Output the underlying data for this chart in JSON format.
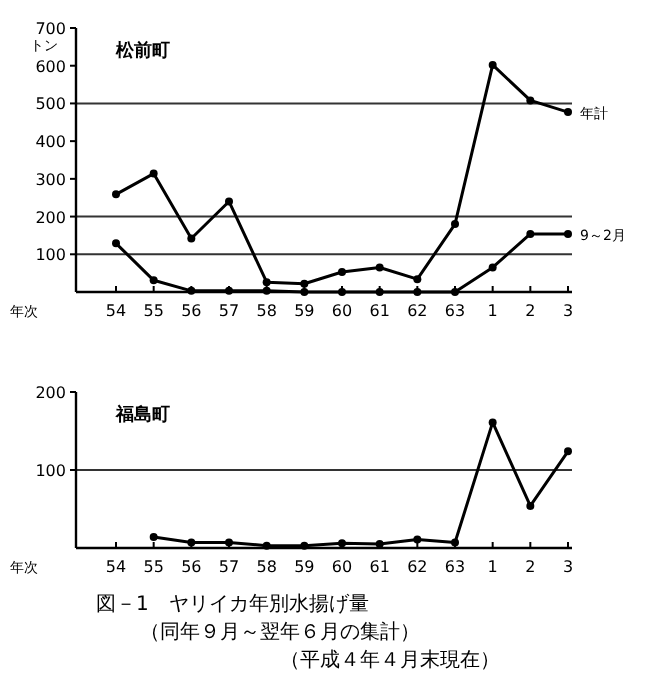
{
  "chart_data": [
    {
      "type": "line",
      "title": "松前町",
      "xlabel": "年次",
      "ylabel": "トン",
      "categories": [
        "54",
        "55",
        "56",
        "57",
        "58",
        "59",
        "60",
        "61",
        "62",
        "63",
        "1",
        "2",
        "3"
      ],
      "ylim": [
        0,
        700
      ],
      "yticks": [
        100,
        200,
        300,
        400,
        500,
        600,
        700
      ],
      "marker": "circle",
      "ref_lines": [
        {
          "axis": "y",
          "value": 100
        },
        {
          "axis": "y",
          "value": 200
        },
        {
          "axis": "y",
          "value": 500
        }
      ],
      "series": [
        {
          "name": "年計",
          "color": "#000000",
          "values": [
            259,
            314,
            142,
            240,
            26,
            22,
            53,
            65,
            34,
            180,
            602,
            508,
            477
          ]
        },
        {
          "name": "9～2月",
          "color": "#000000",
          "values": [
            129,
            31,
            3,
            3,
            3,
            0,
            0,
            0,
            0,
            0,
            65,
            154,
            154
          ]
        }
      ]
    },
    {
      "type": "line",
      "title": "福島町",
      "xlabel": "年次",
      "categories": [
        "54",
        "55",
        "56",
        "57",
        "58",
        "59",
        "60",
        "61",
        "62",
        "63",
        "1",
        "2",
        "3"
      ],
      "ylim": [
        0,
        200
      ],
      "yticks": [
        100,
        200
      ],
      "marker": "circle",
      "ref_lines": [
        {
          "axis": "y",
          "value": 100
        }
      ],
      "series": [
        {
          "color": "#000000",
          "values": [
            null,
            14,
            7,
            7,
            3,
            3,
            6,
            5,
            11,
            7,
            161,
            54,
            124
          ]
        }
      ],
      "annotations": [
        "図－1　ヤリイカ年別水揚げ量",
        "（同年９月～翌年６月の集計）",
        "（平成４年４月末現在）"
      ]
    }
  ]
}
